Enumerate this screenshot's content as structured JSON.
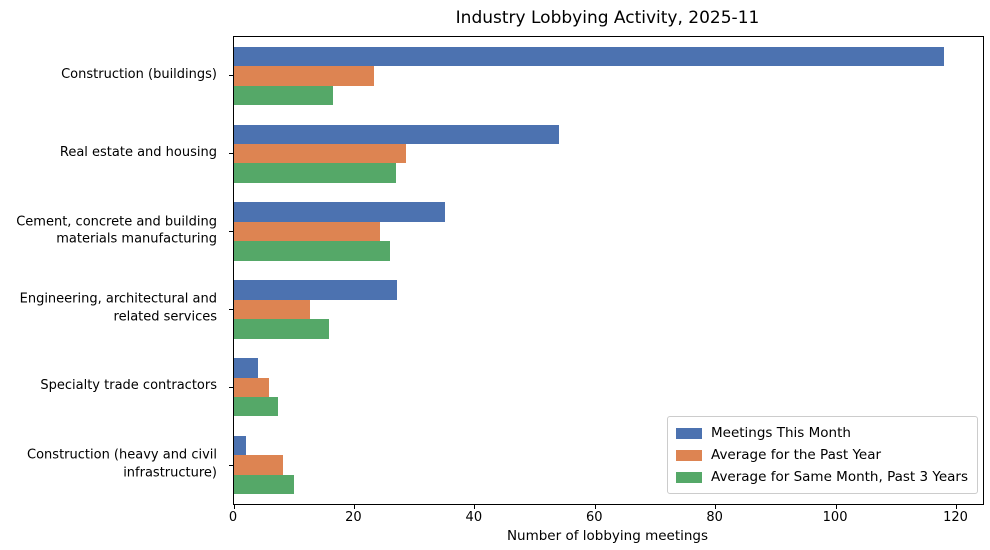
{
  "chart_data": {
    "type": "bar",
    "orientation": "horizontal",
    "title": "Industry Lobbying Activity, 2025-11",
    "xlabel": "Number of lobbying meetings",
    "ylabel": "",
    "grid": false,
    "xlim": [
      0,
      124.4
    ],
    "xticks": [
      0,
      20,
      40,
      60,
      80,
      100,
      120
    ],
    "legend_position": "lower right",
    "categories": [
      "Construction (buildings)",
      "Real estate and housing",
      "Cement, concrete and building materials manufacturing",
      "Engineering, architectural and related services",
      "Specialty trade contractors",
      "Construction (heavy and civil infrastructure)"
    ],
    "series": [
      {
        "name": "Meetings This Month",
        "color": "#4C72B0",
        "values": [
          118,
          54,
          35,
          27,
          4,
          2
        ]
      },
      {
        "name": "Average for the Past Year",
        "color": "#DD8452",
        "values": [
          23.3,
          28.6,
          24.3,
          12.7,
          5.8,
          8.1
        ]
      },
      {
        "name": "Average for Same Month, Past 3 Years",
        "color": "#55A868",
        "values": [
          16.4,
          26.9,
          25.9,
          15.8,
          7.3,
          10.0
        ]
      }
    ]
  }
}
